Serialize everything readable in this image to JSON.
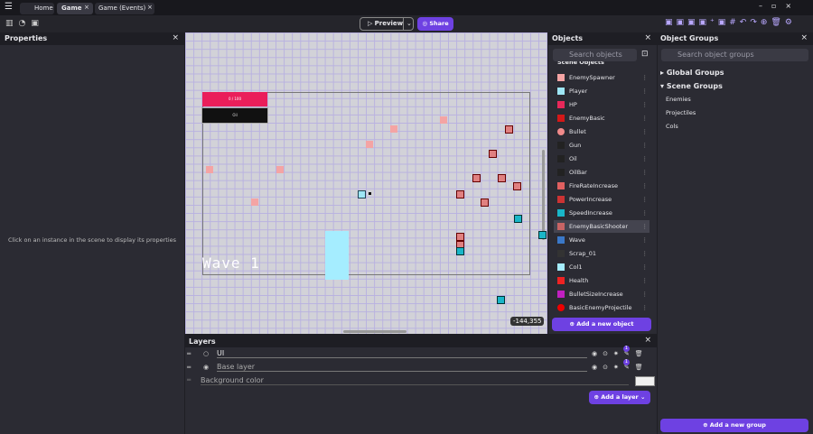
{
  "tabs": [
    "Home",
    "Game",
    "Game (Events)"
  ],
  "toolbar": {
    "preview": "Preview",
    "share": "Share"
  },
  "properties": {
    "title": "Properties",
    "hint": "Click on an instance in the scene to display its properties"
  },
  "scene": {
    "hud_bar": "0 / 100",
    "hud_oil": "Oil",
    "wave": "Wave 1",
    "coords": "-144,355"
  },
  "objects": {
    "title": "Objects",
    "search": "Search objects",
    "section": "Scene Objects",
    "items": [
      "EnemySpawner",
      "Player",
      "HP",
      "EnemyBasic",
      "Bullet",
      "Gun",
      "Oil",
      "OilBar",
      "FireRateIncrease",
      "PowerIncrease",
      "SpeedIncrease",
      "EnemyBasicShooter",
      "Wave",
      "Scrap_01",
      "Col1",
      "Health",
      "BulletSizeIncrease",
      "BasicEnemyProjectile"
    ],
    "add": "Add a new object"
  },
  "groups": {
    "title": "Object Groups",
    "search": "Search object groups",
    "global": "Global Groups",
    "scene": "Scene Groups",
    "items": [
      "Enemies",
      "Projectiles",
      "Cols"
    ],
    "add": "Add a new group"
  },
  "layers": {
    "title": "Layers",
    "items": [
      "UI",
      "Base layer"
    ],
    "badges": [
      "1",
      "1"
    ],
    "background": "Background color",
    "add": "Add a layer"
  }
}
